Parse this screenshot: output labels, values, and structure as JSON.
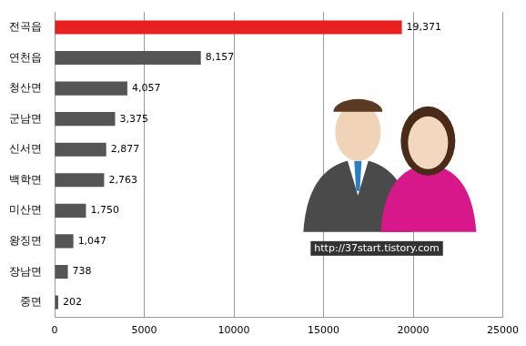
{
  "chart_data": {
    "type": "bar",
    "orientation": "horizontal",
    "categories": [
      "전곡읍",
      "연천읍",
      "청산면",
      "군남면",
      "신서면",
      "백학면",
      "미산면",
      "왕징면",
      "장남면",
      "중면"
    ],
    "values": [
      19371,
      8157,
      4057,
      3375,
      2877,
      2763,
      1750,
      1047,
      738,
      202
    ],
    "value_labels": [
      "19,371",
      "8,157",
      "4,057",
      "3,375",
      "2,877",
      "2,763",
      "1,750",
      "1,047",
      "738",
      "202"
    ],
    "colors": [
      "#e8201f",
      "#555555",
      "#555555",
      "#555555",
      "#555555",
      "#555555",
      "#555555",
      "#555555",
      "#555555",
      "#555555"
    ],
    "xlim": [
      0,
      25000
    ],
    "xticks": [
      0,
      5000,
      10000,
      15000,
      20000,
      25000
    ],
    "grid": true,
    "data_labels": true,
    "annotations": [
      "http://37start.tistory.com"
    ]
  }
}
